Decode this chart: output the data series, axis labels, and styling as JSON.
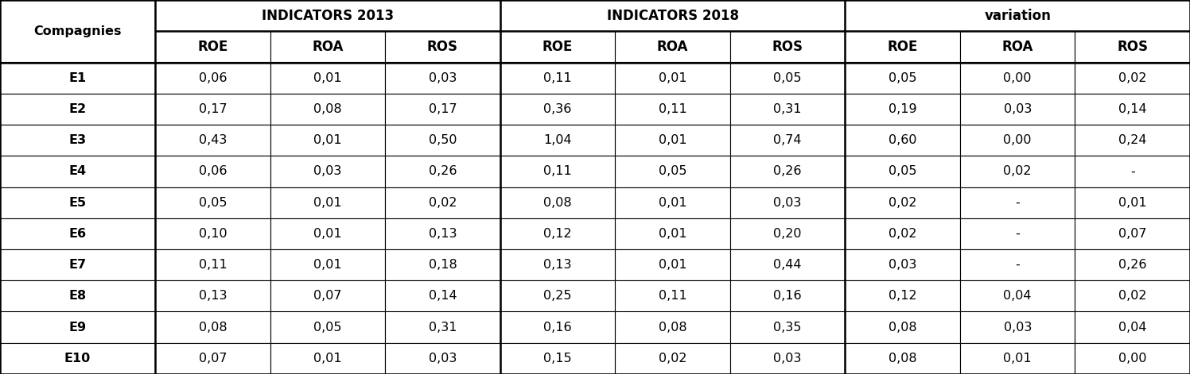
{
  "companies": [
    "E1",
    "E2",
    "E3",
    "E4",
    "E5",
    "E6",
    "E7",
    "E8",
    "E9",
    "E10"
  ],
  "ind2013": [
    [
      "0,06",
      "0,01",
      "0,03"
    ],
    [
      "0,17",
      "0,08",
      "0,17"
    ],
    [
      "0,43",
      "0,01",
      "0,50"
    ],
    [
      "0,06",
      "0,03",
      "0,26"
    ],
    [
      "0,05",
      "0,01",
      "0,02"
    ],
    [
      "0,10",
      "0,01",
      "0,13"
    ],
    [
      "0,11",
      "0,01",
      "0,18"
    ],
    [
      "0,13",
      "0,07",
      "0,14"
    ],
    [
      "0,08",
      "0,05",
      "0,31"
    ],
    [
      "0,07",
      "0,01",
      "0,03"
    ]
  ],
  "ind2018": [
    [
      "0,11",
      "0,01",
      "0,05"
    ],
    [
      "0,36",
      "0,11",
      "0,31"
    ],
    [
      "1,04",
      "0,01",
      "0,74"
    ],
    [
      "0,11",
      "0,05",
      "0,26"
    ],
    [
      "0,08",
      "0,01",
      "0,03"
    ],
    [
      "0,12",
      "0,01",
      "0,20"
    ],
    [
      "0,13",
      "0,01",
      "0,44"
    ],
    [
      "0,25",
      "0,11",
      "0,16"
    ],
    [
      "0,16",
      "0,08",
      "0,35"
    ],
    [
      "0,15",
      "0,02",
      "0,03"
    ]
  ],
  "variation": [
    [
      "0,05",
      "0,00",
      "0,02"
    ],
    [
      "0,19",
      "0,03",
      "0,14"
    ],
    [
      "0,60",
      "0,00",
      "0,24"
    ],
    [
      "0,05",
      "0,02",
      "-"
    ],
    [
      "0,02",
      "-",
      "0,01"
    ],
    [
      "0,02",
      "-",
      "0,07"
    ],
    [
      "0,03",
      "-",
      "0,26"
    ],
    [
      "0,12",
      "0,04",
      "0,02"
    ],
    [
      "0,08",
      "0,03",
      "0,04"
    ],
    [
      "0,08",
      "0,01",
      "0,00"
    ]
  ],
  "header_group1": "INDICATORS 2013",
  "header_group2": "INDICATORS 2018",
  "header_group3": "variation",
  "sub_headers": [
    "ROE",
    "ROA",
    "ROS"
  ],
  "col_header": "Compagnies",
  "bg_color": "#ffffff",
  "text_color": "#000000",
  "font_size": 11.5,
  "header_font_size": 12,
  "col_widths_rel": [
    1.35,
    1.0,
    1.0,
    1.0,
    1.0,
    1.0,
    1.0,
    1.0,
    1.0,
    1.0
  ],
  "n_header_rows": 2,
  "n_data_rows": 10,
  "lw_thin": 0.8,
  "lw_thick": 1.8
}
